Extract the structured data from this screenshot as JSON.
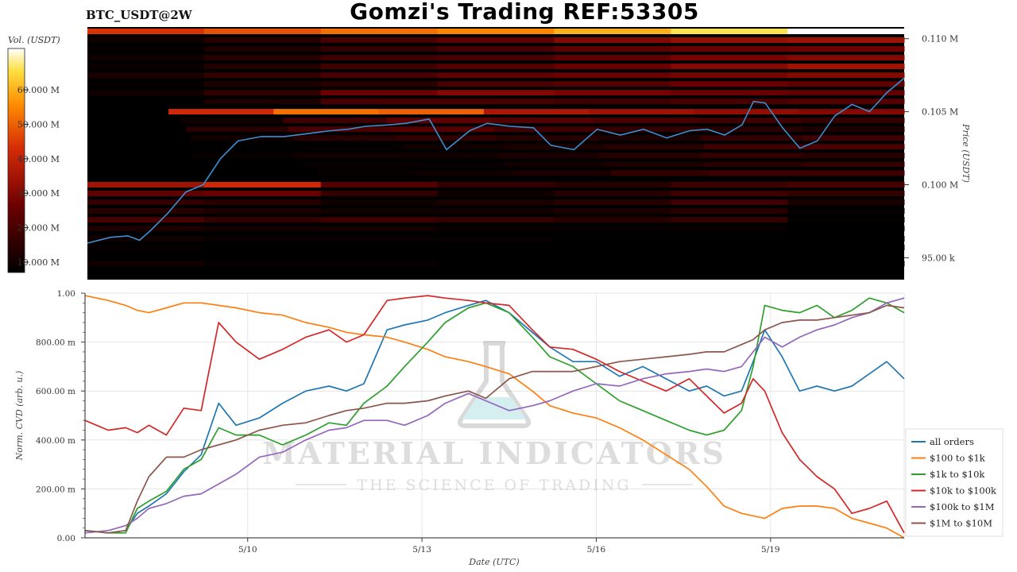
{
  "header": {
    "symbol": "BTC_USDT@2W",
    "title": "Gomzi's Trading REF:53305"
  },
  "watermark": {
    "line1": "MATERIAL INDICATORS",
    "line2": "THE SCIENCE OF TRADING"
  },
  "colors": {
    "all_orders": "#1f77b4",
    "100_to_1k": "#ff7f0e",
    "1k_to_10k": "#2ca02c",
    "10k_to_100k": "#d62728",
    "100k_to_1M": "#9467bd",
    "1M_to_10M": "#8c564b",
    "price_line": "#3a8fd0"
  },
  "chart_data": [
    {
      "type": "heatmap",
      "title": "",
      "colorbar_label": "Vol. (USDT)",
      "colorbar_ticks": [
        "10.000 M",
        "20.000 M",
        "30.000 M",
        "40.000 M",
        "50.000 M",
        "60.000 M"
      ],
      "colorbar_range": [
        7,
        72
      ],
      "ylabel": "Price (USDT)",
      "y_ticks": [
        {
          "value": 95000,
          "label": "95.00 k"
        },
        {
          "value": 100000,
          "label": "0.100 M"
        },
        {
          "value": 105000,
          "label": "0.105 M"
        },
        {
          "value": 110000,
          "label": "0.110 M"
        }
      ],
      "ylim": [
        93500,
        110800
      ],
      "xlim": [
        7.2,
        21.3
      ],
      "price_levels_M": [
        {
          "price": 110500,
          "start": 7.2,
          "vols": [
            44,
            48,
            52,
            55,
            60,
            66,
            75
          ]
        },
        {
          "price": 109900,
          "start": 7.2,
          "vols": [
            10,
            14,
            20,
            24,
            30,
            33,
            34
          ]
        },
        {
          "price": 109300,
          "start": 7.2,
          "vols": [
            8,
            12,
            16,
            20,
            24,
            26,
            27
          ]
        },
        {
          "price": 108700,
          "start": 7.2,
          "vols": [
            10,
            14,
            18,
            20,
            24,
            28,
            30
          ]
        },
        {
          "price": 108100,
          "start": 7.2,
          "vols": [
            9,
            13,
            18,
            22,
            26,
            30,
            34
          ]
        },
        {
          "price": 107500,
          "start": 7.2,
          "vols": [
            12,
            16,
            20,
            24,
            26,
            28,
            30
          ]
        },
        {
          "price": 106900,
          "start": 7.2,
          "vols": [
            8,
            12,
            14,
            20,
            22,
            26,
            24
          ]
        },
        {
          "price": 106300,
          "start": 7.2,
          "vols": [
            10,
            16,
            26,
            30,
            28,
            26,
            24
          ]
        },
        {
          "price": 105700,
          "start": 7.2,
          "vols": [
            6,
            12,
            20,
            20,
            18,
            20,
            22
          ]
        },
        {
          "price": 105000,
          "start": 8.6,
          "vols": [
            42,
            52,
            50,
            36,
            34,
            32,
            30
          ]
        },
        {
          "price": 104400,
          "start": 8.8,
          "vols": [
            10,
            18,
            24,
            22,
            20,
            18,
            16
          ]
        },
        {
          "price": 103800,
          "start": 8.9,
          "vols": [
            14,
            20,
            22,
            18,
            16,
            14,
            12
          ]
        },
        {
          "price": 103200,
          "start": 9.0,
          "vols": [
            10,
            14,
            16,
            14,
            12,
            16,
            18
          ]
        },
        {
          "price": 102600,
          "start": 9.2,
          "vols": [
            6,
            8,
            10,
            12,
            14,
            18,
            20
          ]
        },
        {
          "price": 102000,
          "start": 9.0,
          "vols": [
            8,
            10,
            10,
            12,
            14,
            16,
            14
          ]
        },
        {
          "price": 101400,
          "start": 9.2,
          "vols": [
            6,
            8,
            8,
            10,
            12,
            14,
            16
          ]
        },
        {
          "price": 100800,
          "start": 9.5,
          "vols": [
            6,
            8,
            10,
            12,
            16,
            18,
            18
          ]
        },
        {
          "price": 100000,
          "start": 7.2,
          "vols": [
            34,
            42,
            22,
            16,
            14,
            18,
            20
          ]
        },
        {
          "price": 99400,
          "start": 7.2,
          "vols": [
            24,
            26,
            16,
            10,
            14,
            18,
            16
          ]
        },
        {
          "price": 98800,
          "start": 7.2,
          "vols": [
            16,
            14,
            10,
            12,
            14,
            18,
            12
          ]
        },
        {
          "price": 98200,
          "start": 7.2,
          "vols": [
            14,
            12,
            10,
            10,
            12,
            14,
            8
          ]
        },
        {
          "price": 97600,
          "start": 7.2,
          "vols": [
            20,
            16,
            18,
            16,
            14,
            16,
            8
          ]
        },
        {
          "price": 97000,
          "start": 7.2,
          "vols": [
            12,
            10,
            10,
            8,
            8,
            8,
            6
          ]
        },
        {
          "price": 96300,
          "start": 7.2,
          "vols": [
            10,
            8,
            8,
            8,
            6,
            6,
            6
          ]
        },
        {
          "price": 95700,
          "start": 7.2,
          "vols": [
            8,
            6,
            6,
            6,
            6,
            6,
            6
          ]
        },
        {
          "price": 94600,
          "start": 7.2,
          "vols": [
            10,
            8,
            8,
            6,
            6,
            6,
            6
          ]
        }
      ],
      "price_series": {
        "x": [
          7.2,
          7.6,
          7.9,
          8.1,
          8.3,
          8.6,
          8.9,
          9.2,
          9.5,
          9.8,
          10.2,
          10.6,
          11.0,
          11.4,
          11.7,
          12.0,
          12.4,
          12.7,
          13.1,
          13.4,
          13.8,
          14.1,
          14.5,
          14.9,
          15.2,
          15.6,
          16.0,
          16.4,
          16.8,
          17.2,
          17.6,
          17.9,
          18.2,
          18.5,
          18.7,
          18.9,
          19.2,
          19.5,
          19.8,
          20.1,
          20.4,
          20.7,
          21.0,
          21.3
        ],
        "y": [
          96000,
          96400,
          96500,
          96200,
          96900,
          98100,
          99500,
          100000,
          101800,
          103000,
          103300,
          103300,
          103500,
          103700,
          103800,
          104000,
          104100,
          104200,
          104500,
          102400,
          103700,
          104200,
          104000,
          103900,
          102700,
          102400,
          103800,
          103400,
          103800,
          103200,
          103700,
          103800,
          103400,
          104100,
          105700,
          105600,
          103900,
          102500,
          103000,
          104700,
          105500,
          105000,
          106300,
          107300
        ]
      }
    },
    {
      "type": "line",
      "title": "",
      "xlabel": "Date (UTC)",
      "ylabel": "Norm. CVD (arb. u.)",
      "ylim": [
        0,
        1
      ],
      "xlim": [
        7.2,
        21.3
      ],
      "x_ticks": [
        {
          "value": 10,
          "label": "5/10"
        },
        {
          "value": 13,
          "label": "5/13"
        },
        {
          "value": 16,
          "label": "5/16"
        },
        {
          "value": 19,
          "label": "5/19"
        }
      ],
      "y_ticks": [
        {
          "value": 0,
          "label": "0.00"
        },
        {
          "value": 0.2,
          "label": "200.00 m"
        },
        {
          "value": 0.4,
          "label": "400.00 m"
        },
        {
          "value": 0.6,
          "label": "600.00 m"
        },
        {
          "value": 0.8,
          "label": "800.00 m"
        },
        {
          "value": 1.0,
          "label": "1.00"
        }
      ],
      "grid": true,
      "legend": "bottom-right",
      "x": [
        7.2,
        7.6,
        7.9,
        8.1,
        8.3,
        8.6,
        8.9,
        9.2,
        9.5,
        9.8,
        10.2,
        10.6,
        11.0,
        11.4,
        11.7,
        12.0,
        12.4,
        12.7,
        13.1,
        13.4,
        13.8,
        14.1,
        14.5,
        14.9,
        15.2,
        15.6,
        16.0,
        16.4,
        16.8,
        17.2,
        17.6,
        17.9,
        18.2,
        18.5,
        18.7,
        18.9,
        19.2,
        19.5,
        19.8,
        20.1,
        20.4,
        20.7,
        21.0,
        21.3
      ],
      "series": [
        {
          "name": "all orders",
          "color_key": "all_orders",
          "values": [
            0.03,
            0.02,
            0.03,
            0.1,
            0.13,
            0.18,
            0.27,
            0.34,
            0.55,
            0.46,
            0.49,
            0.55,
            0.6,
            0.62,
            0.6,
            0.63,
            0.85,
            0.87,
            0.89,
            0.92,
            0.95,
            0.97,
            0.92,
            0.84,
            0.78,
            0.72,
            0.72,
            0.66,
            0.7,
            0.65,
            0.6,
            0.62,
            0.58,
            0.6,
            0.72,
            0.85,
            0.74,
            0.6,
            0.62,
            0.6,
            0.62,
            0.67,
            0.72,
            0.65
          ]
        },
        {
          "name": "$100 to $1k",
          "color_key": "100_to_1k",
          "values": [
            0.99,
            0.97,
            0.95,
            0.93,
            0.92,
            0.94,
            0.96,
            0.96,
            0.95,
            0.94,
            0.92,
            0.91,
            0.88,
            0.86,
            0.84,
            0.83,
            0.82,
            0.8,
            0.77,
            0.74,
            0.72,
            0.7,
            0.67,
            0.6,
            0.54,
            0.51,
            0.49,
            0.45,
            0.4,
            0.34,
            0.28,
            0.21,
            0.13,
            0.1,
            0.09,
            0.08,
            0.12,
            0.13,
            0.13,
            0.12,
            0.08,
            0.06,
            0.04,
            0.0
          ]
        },
        {
          "name": "$1k to $10k",
          "color_key": "1k_to_10k",
          "values": [
            0.03,
            0.02,
            0.02,
            0.12,
            0.15,
            0.19,
            0.28,
            0.32,
            0.45,
            0.42,
            0.42,
            0.38,
            0.42,
            0.47,
            0.46,
            0.55,
            0.62,
            0.7,
            0.8,
            0.88,
            0.94,
            0.96,
            0.92,
            0.82,
            0.74,
            0.7,
            0.63,
            0.56,
            0.52,
            0.48,
            0.44,
            0.42,
            0.44,
            0.52,
            0.7,
            0.95,
            0.93,
            0.92,
            0.95,
            0.9,
            0.93,
            0.98,
            0.96,
            0.92
          ]
        },
        {
          "name": "$10k to $100k",
          "color_key": "10k_to_100k",
          "values": [
            0.48,
            0.44,
            0.45,
            0.43,
            0.46,
            0.42,
            0.53,
            0.52,
            0.88,
            0.8,
            0.73,
            0.77,
            0.82,
            0.85,
            0.8,
            0.83,
            0.97,
            0.98,
            0.99,
            0.98,
            0.97,
            0.96,
            0.95,
            0.85,
            0.78,
            0.77,
            0.73,
            0.68,
            0.64,
            0.6,
            0.65,
            0.58,
            0.51,
            0.55,
            0.65,
            0.6,
            0.43,
            0.32,
            0.25,
            0.2,
            0.1,
            0.12,
            0.15,
            0.02
          ]
        },
        {
          "name": "$100k to $1M",
          "color_key": "100k_to_1M",
          "values": [
            0.02,
            0.03,
            0.05,
            0.08,
            0.12,
            0.14,
            0.17,
            0.18,
            0.22,
            0.26,
            0.33,
            0.35,
            0.4,
            0.44,
            0.45,
            0.48,
            0.48,
            0.46,
            0.5,
            0.55,
            0.59,
            0.56,
            0.52,
            0.54,
            0.56,
            0.6,
            0.63,
            0.62,
            0.65,
            0.67,
            0.68,
            0.69,
            0.68,
            0.7,
            0.76,
            0.82,
            0.78,
            0.82,
            0.85,
            0.87,
            0.9,
            0.92,
            0.96,
            0.98
          ]
        },
        {
          "name": "$1M to $10M",
          "color_key": "1M_to_10M",
          "values": [
            0.03,
            0.02,
            0.03,
            0.15,
            0.25,
            0.33,
            0.33,
            0.36,
            0.38,
            0.4,
            0.44,
            0.46,
            0.47,
            0.5,
            0.52,
            0.53,
            0.55,
            0.55,
            0.56,
            0.58,
            0.6,
            0.57,
            0.65,
            0.68,
            0.68,
            0.68,
            0.7,
            0.72,
            0.73,
            0.74,
            0.75,
            0.76,
            0.76,
            0.79,
            0.81,
            0.85,
            0.88,
            0.89,
            0.89,
            0.9,
            0.91,
            0.92,
            0.95,
            0.94
          ]
        }
      ]
    }
  ]
}
